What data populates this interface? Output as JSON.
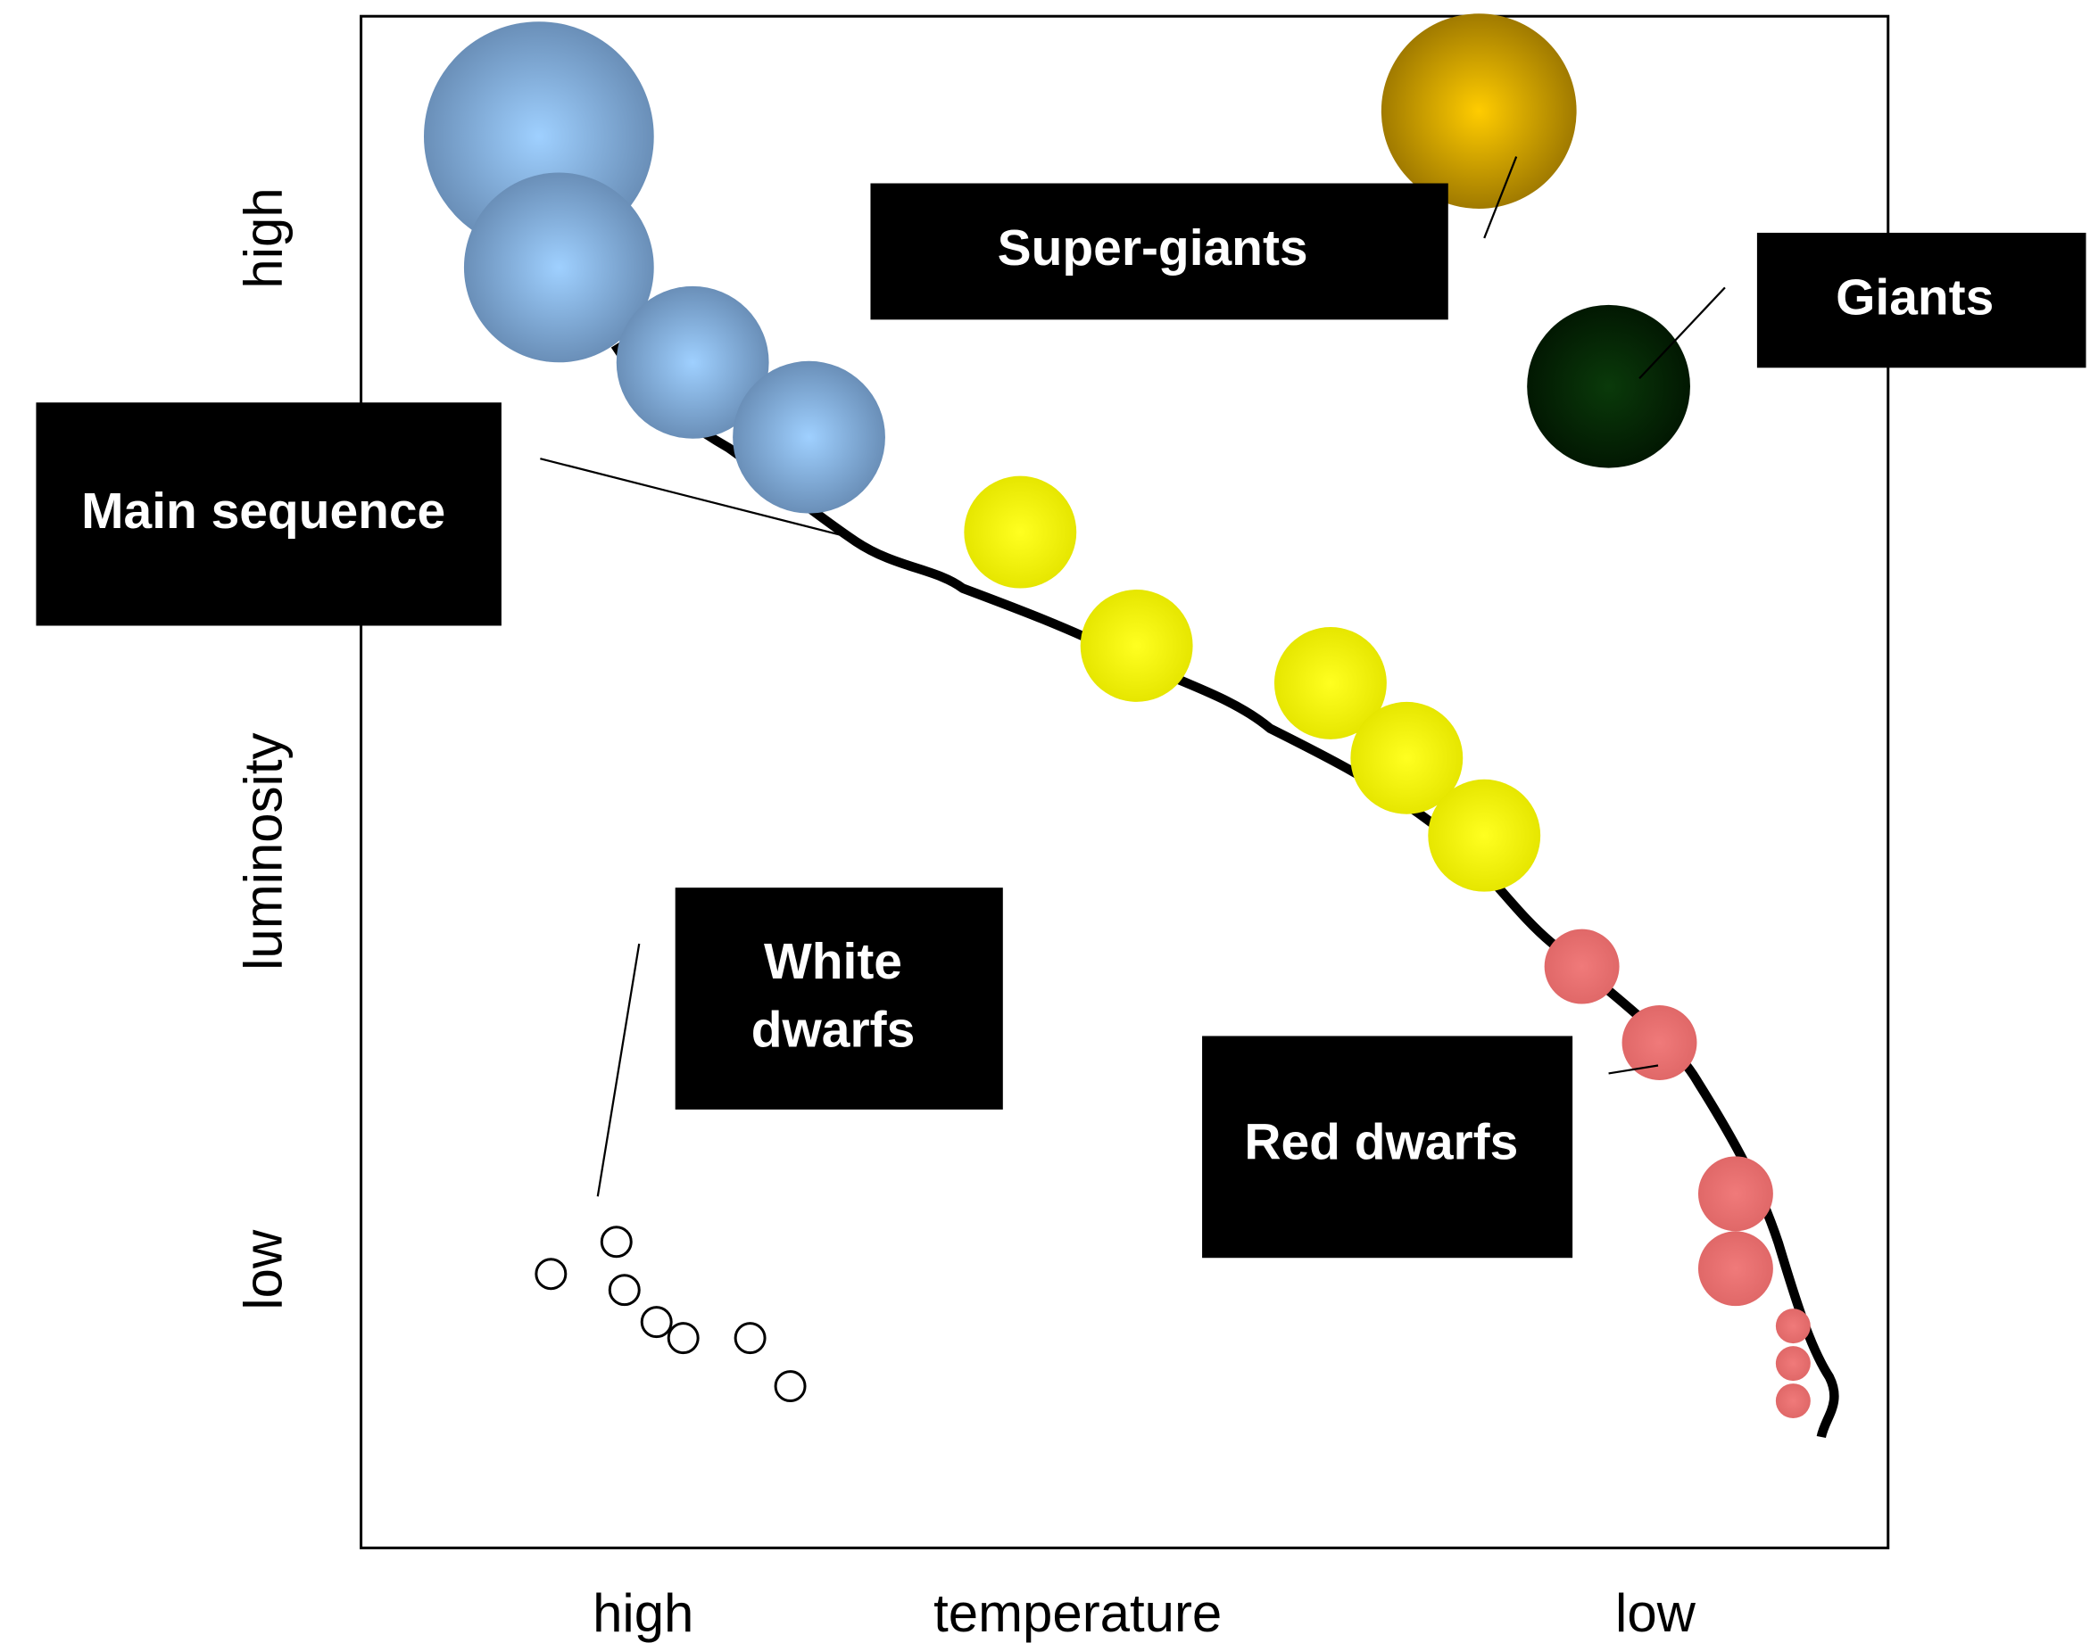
{
  "axes": {
    "y_high": "high",
    "y_label": "luminosity",
    "y_low": "low",
    "x_high": "high",
    "x_label": "temperature",
    "x_low": "low"
  },
  "labels": {
    "super_giants": "Super-giants",
    "giants": "Giants",
    "main_sequence": "Main sequence",
    "white_dwarfs": [
      "White",
      "dwarfs"
    ],
    "red_dwarfs": "Red dwarfs"
  }
}
